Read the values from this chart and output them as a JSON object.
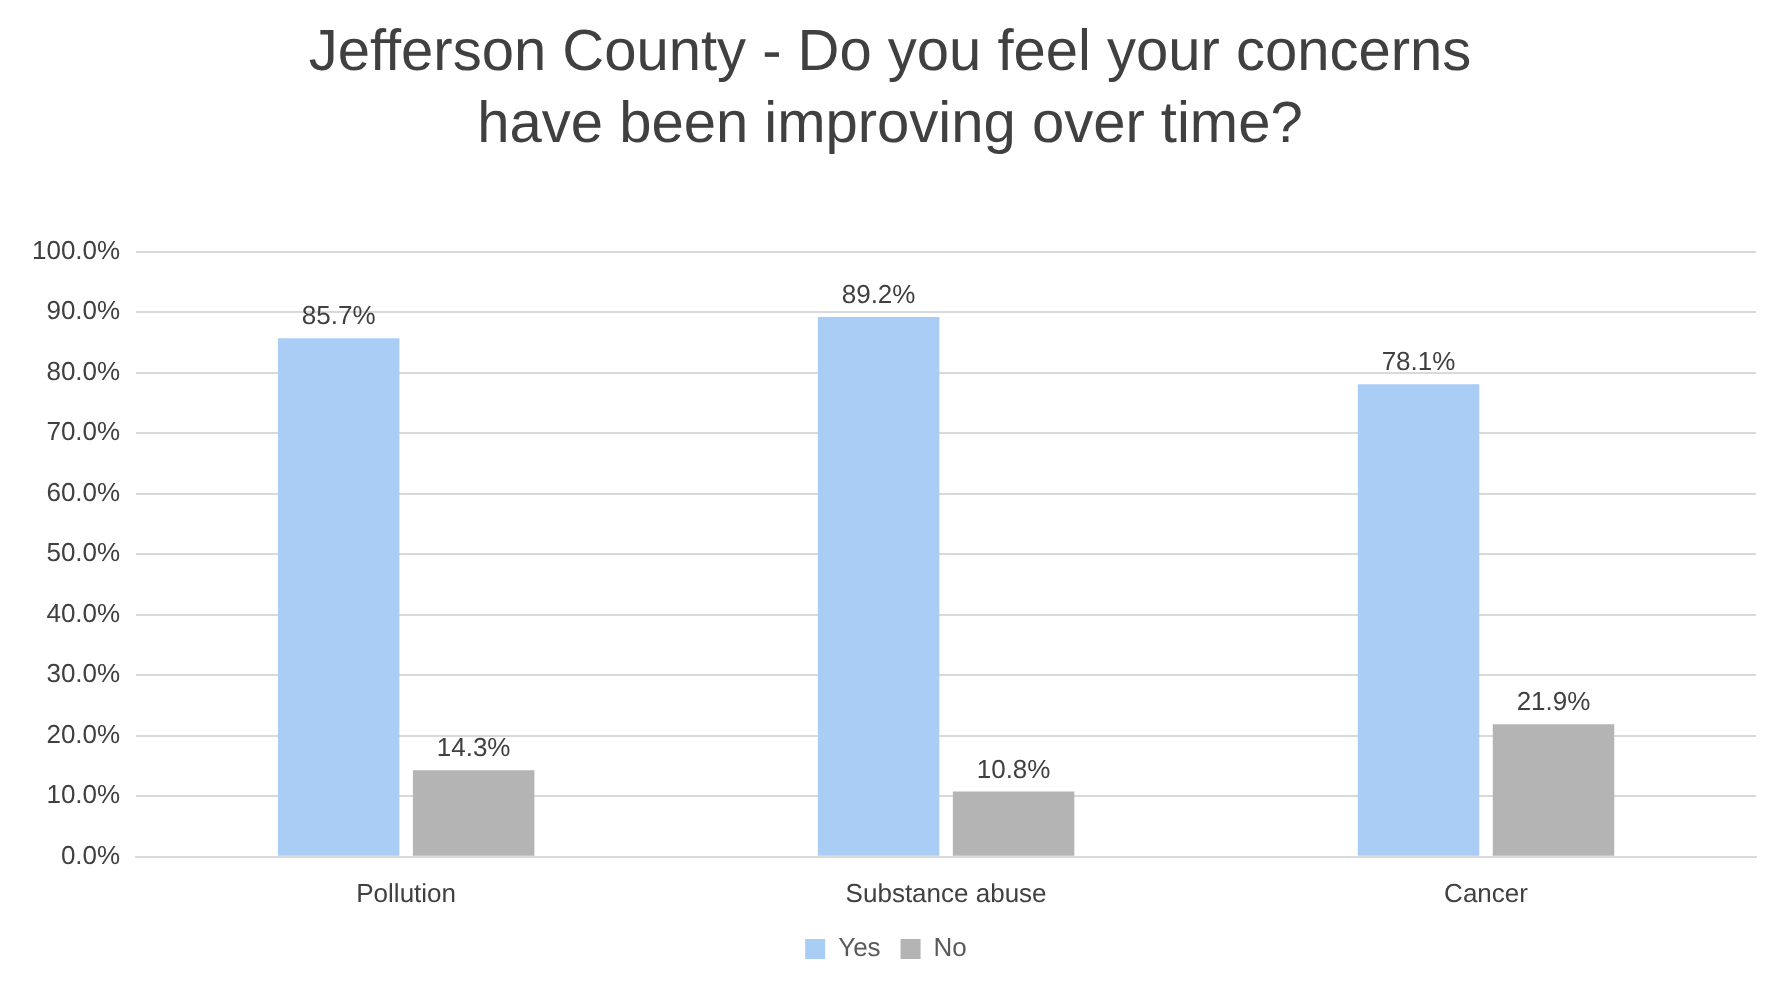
{
  "chart_data": {
    "type": "bar",
    "title": "Jefferson County - Do you feel your concerns have been improving over time?",
    "categories": [
      "Pollution",
      "Substance abuse",
      "Cancer"
    ],
    "series": [
      {
        "name": "Yes",
        "color": "#a9cdf5",
        "values": [
          85.7,
          89.2,
          78.1
        ],
        "value_labels": [
          "85.7%",
          "89.2%",
          "78.1%"
        ]
      },
      {
        "name": "No",
        "color": "#b4b4b4",
        "values": [
          14.3,
          10.8,
          21.9
        ],
        "value_labels": [
          "14.3%",
          "10.8%",
          "21.9%"
        ]
      }
    ],
    "ylim": [
      0,
      100
    ],
    "yticks": [
      {
        "value": 0,
        "label": "0.0%"
      },
      {
        "value": 10,
        "label": "10.0%"
      },
      {
        "value": 20,
        "label": "20.0%"
      },
      {
        "value": 30,
        "label": "30.0%"
      },
      {
        "value": 40,
        "label": "40.0%"
      },
      {
        "value": 50,
        "label": "50.0%"
      },
      {
        "value": 60,
        "label": "60.0%"
      },
      {
        "value": 70,
        "label": "70.0%"
      },
      {
        "value": 80,
        "label": "80.0%"
      },
      {
        "value": 90,
        "label": "90.0%"
      },
      {
        "value": 100,
        "label": "100.0%"
      }
    ],
    "grid": "y",
    "legend": "bottom"
  }
}
